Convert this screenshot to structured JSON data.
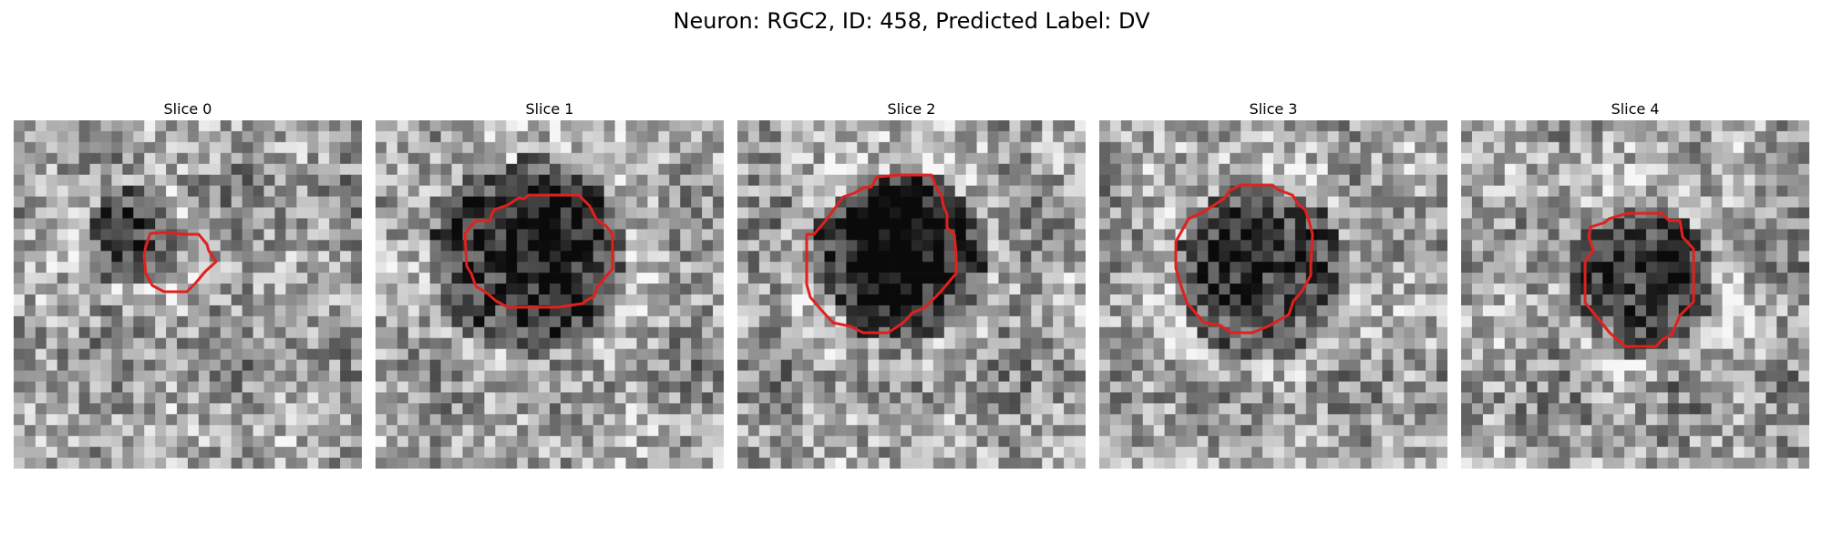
{
  "figure": {
    "title": "Neuron: RGC2, ID: 458, Predicted Label: DV"
  },
  "contour_color": "#e0211e",
  "panels": [
    {
      "label": "Slice 0"
    },
    {
      "label": "Slice 1"
    },
    {
      "label": "Slice 2"
    },
    {
      "label": "Slice 3"
    },
    {
      "label": "Slice 4"
    }
  ]
}
